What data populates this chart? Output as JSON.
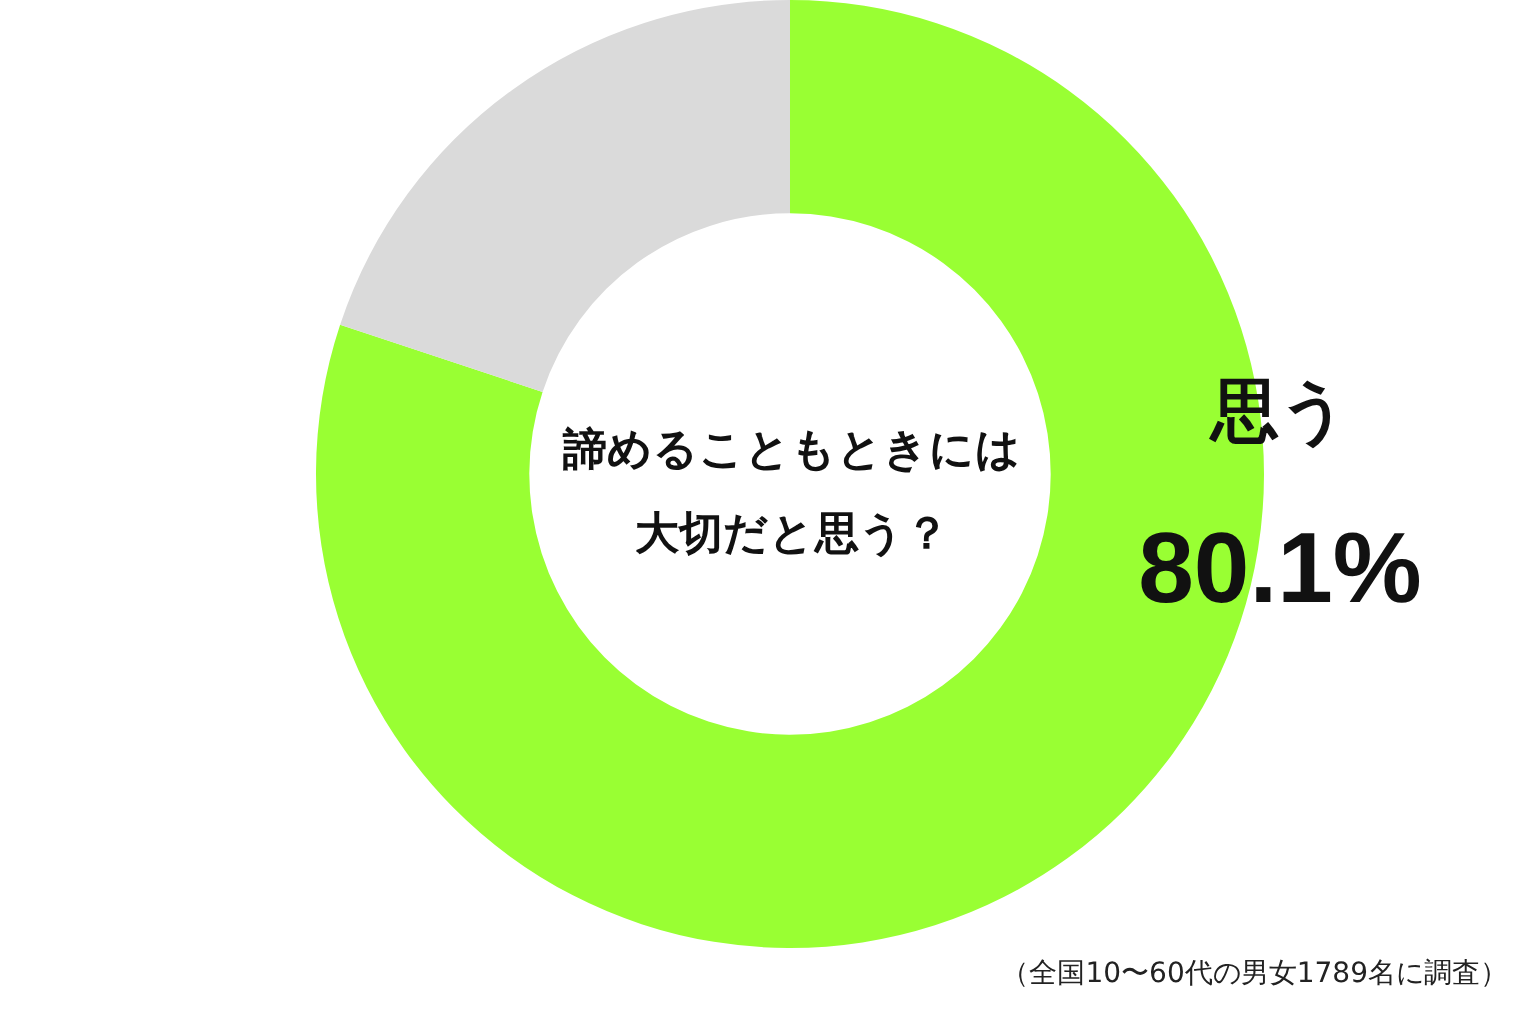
{
  "chart_data": {
    "type": "donut",
    "title": "諦めることもときには大切だと思う？",
    "categories": [
      "思う",
      null
    ],
    "values": [
      80.1,
      19.9
    ],
    "colors": [
      "#99ff33",
      "#dadada"
    ],
    "value_labels": [
      "80.1%",
      null
    ],
    "annotations": [
      "（全国10〜60代の男女1789名に調査）"
    ]
  }
}
